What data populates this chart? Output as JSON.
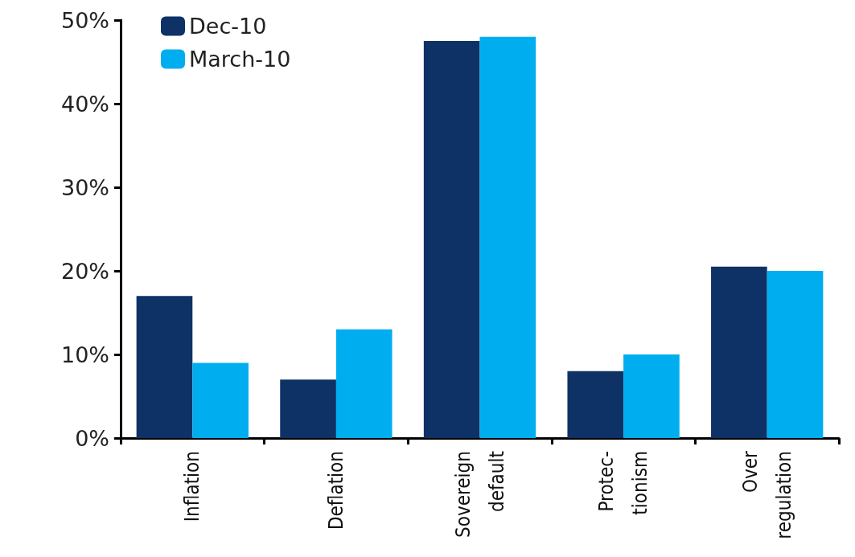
{
  "chart_data": {
    "type": "bar",
    "categories": [
      "Inflation",
      "Deflation",
      "Sovereign\ndefault",
      "Protec-\ntionism",
      "Over\nregulation"
    ],
    "series": [
      {
        "name": "Dec-10",
        "color": "#0e3166",
        "values": [
          17,
          7,
          47.5,
          8,
          20.5
        ]
      },
      {
        "name": "March-10",
        "color": "#00aeef",
        "values": [
          9,
          13,
          48,
          10,
          20
        ]
      }
    ],
    "ylim": [
      0,
      50
    ],
    "yticks": [
      {
        "value": 0,
        "label": "0%"
      },
      {
        "value": 10,
        "label": "10%"
      },
      {
        "value": 20,
        "label": "20%"
      },
      {
        "value": 30,
        "label": "30%"
      },
      {
        "value": 40,
        "label": "40%"
      },
      {
        "value": 50,
        "label": "50%"
      }
    ],
    "grid": false,
    "legend": "top left"
  }
}
